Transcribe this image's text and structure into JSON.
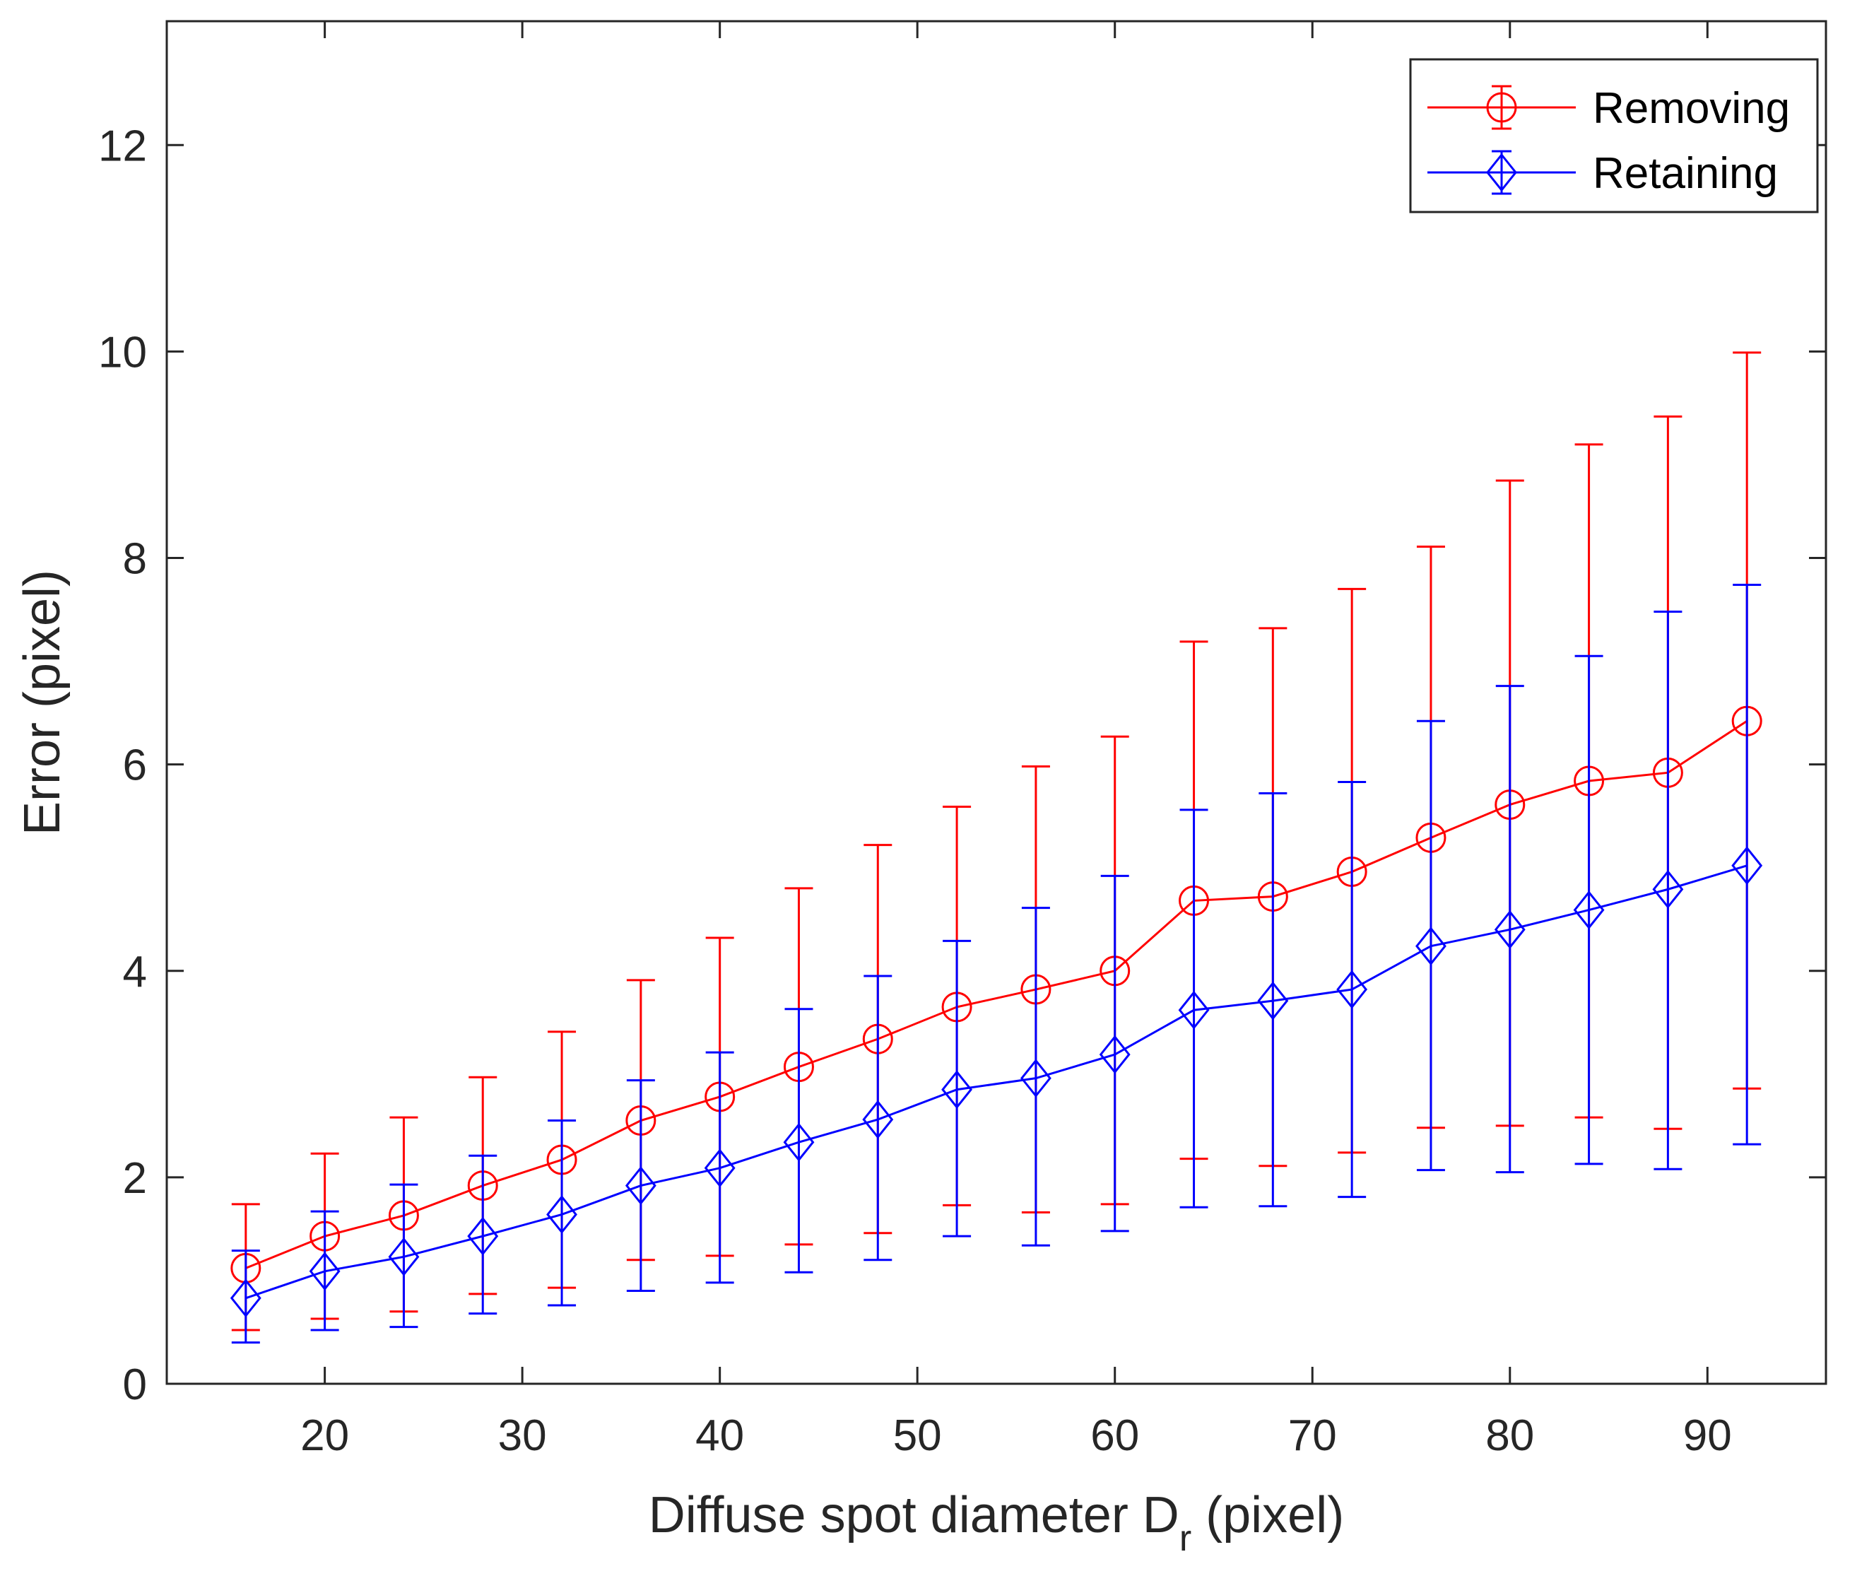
{
  "chart_data": {
    "type": "line",
    "title": "",
    "xlabel": "Diffuse spot diameter D",
    "xlabel_subscript": "r",
    "xlabel_suffix": " (pixel)",
    "ylabel": "Error (pixel)",
    "xlim": [
      12,
      96
    ],
    "ylim": [
      0,
      13.2
    ],
    "xticks": [
      20,
      30,
      40,
      50,
      60,
      70,
      80,
      90
    ],
    "yticks": [
      0,
      2,
      4,
      6,
      8,
      10,
      12
    ],
    "grid": false,
    "legend_position": "top-right",
    "x": [
      16,
      20,
      24,
      28,
      32,
      36,
      40,
      44,
      48,
      52,
      56,
      60,
      64,
      68,
      72,
      76,
      80,
      84,
      88,
      92
    ],
    "series": [
      {
        "name": "Removing",
        "color": "#ff0000",
        "marker": "circle",
        "values": [
          1.12,
          1.43,
          1.63,
          1.92,
          2.17,
          2.55,
          2.78,
          3.07,
          3.34,
          3.65,
          3.82,
          4.0,
          4.68,
          4.72,
          4.96,
          5.29,
          5.61,
          5.84,
          5.92,
          6.42
        ],
        "lower": [
          0.52,
          0.63,
          0.7,
          0.87,
          0.93,
          1.2,
          1.24,
          1.35,
          1.46,
          1.73,
          1.66,
          1.74,
          2.18,
          2.11,
          2.24,
          2.48,
          2.5,
          2.58,
          2.47,
          2.86
        ],
        "upper": [
          1.74,
          2.23,
          2.58,
          2.97,
          3.41,
          3.91,
          4.32,
          4.8,
          5.22,
          5.59,
          5.98,
          6.27,
          7.19,
          7.32,
          7.7,
          8.11,
          8.75,
          9.1,
          9.37,
          9.99
        ]
      },
      {
        "name": "Retaining",
        "color": "#0000ff",
        "marker": "diamond",
        "values": [
          0.83,
          1.09,
          1.23,
          1.43,
          1.64,
          1.92,
          2.09,
          2.34,
          2.56,
          2.85,
          2.96,
          3.19,
          3.62,
          3.71,
          3.82,
          4.24,
          4.4,
          4.59,
          4.79,
          5.02
        ],
        "lower": [
          0.4,
          0.52,
          0.55,
          0.68,
          0.76,
          0.9,
          0.98,
          1.08,
          1.2,
          1.43,
          1.34,
          1.48,
          1.71,
          1.72,
          1.81,
          2.07,
          2.05,
          2.13,
          2.08,
          2.32
        ],
        "upper": [
          1.29,
          1.67,
          1.93,
          2.21,
          2.55,
          2.94,
          3.21,
          3.63,
          3.95,
          4.29,
          4.61,
          4.92,
          5.56,
          5.72,
          5.83,
          6.42,
          6.76,
          7.05,
          7.48,
          7.74
        ]
      }
    ]
  }
}
